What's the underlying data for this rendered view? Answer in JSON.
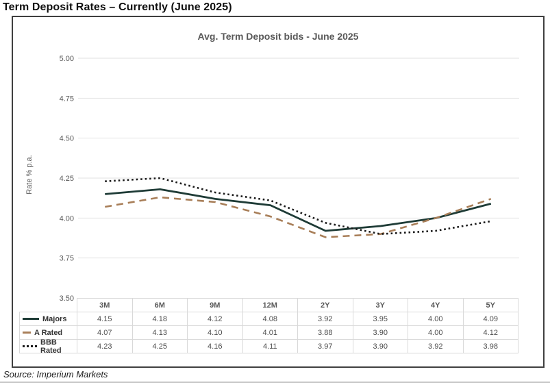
{
  "page": {
    "header_title": "Term Deposit Rates – Currently (June 2025)",
    "source": "Source: Imperium Markets"
  },
  "colors": {
    "majors_line": "#1e3b36",
    "a_rated_line": "#a87e58",
    "bbb_rated_line": "#1a1a1a",
    "gridline": "#e2e2e2",
    "table_border": "#d9d9d9",
    "axis_text": "#595959",
    "frame_border": "#3f3f3f"
  },
  "chart_data": {
    "type": "line",
    "title": "Avg. Term Deposit bids - June 2025",
    "xlabel": "",
    "ylabel": "Rate % p.a.",
    "categories": [
      "3M",
      "6M",
      "9M",
      "12M",
      "2Y",
      "3Y",
      "4Y",
      "5Y"
    ],
    "series": [
      {
        "name": "Majors",
        "style": "solid",
        "color": "#1e3b36",
        "values": [
          4.15,
          4.18,
          4.12,
          4.08,
          3.92,
          3.95,
          4.0,
          4.09
        ]
      },
      {
        "name": "A Rated",
        "style": "dashed",
        "color": "#a87e58",
        "values": [
          4.07,
          4.13,
          4.1,
          4.01,
          3.88,
          3.9,
          4.0,
          4.12
        ]
      },
      {
        "name": "BBB Rated",
        "style": "dotted",
        "color": "#1a1a1a",
        "values": [
          4.23,
          4.25,
          4.16,
          4.11,
          3.97,
          3.9,
          3.92,
          3.98
        ]
      }
    ],
    "ylim": [
      3.5,
      5.0
    ],
    "yticks": [
      "5.00",
      "4.75",
      "4.50",
      "4.25",
      "4.00",
      "3.75",
      "3.50"
    ],
    "grid": true,
    "legend_position": "table-left"
  }
}
